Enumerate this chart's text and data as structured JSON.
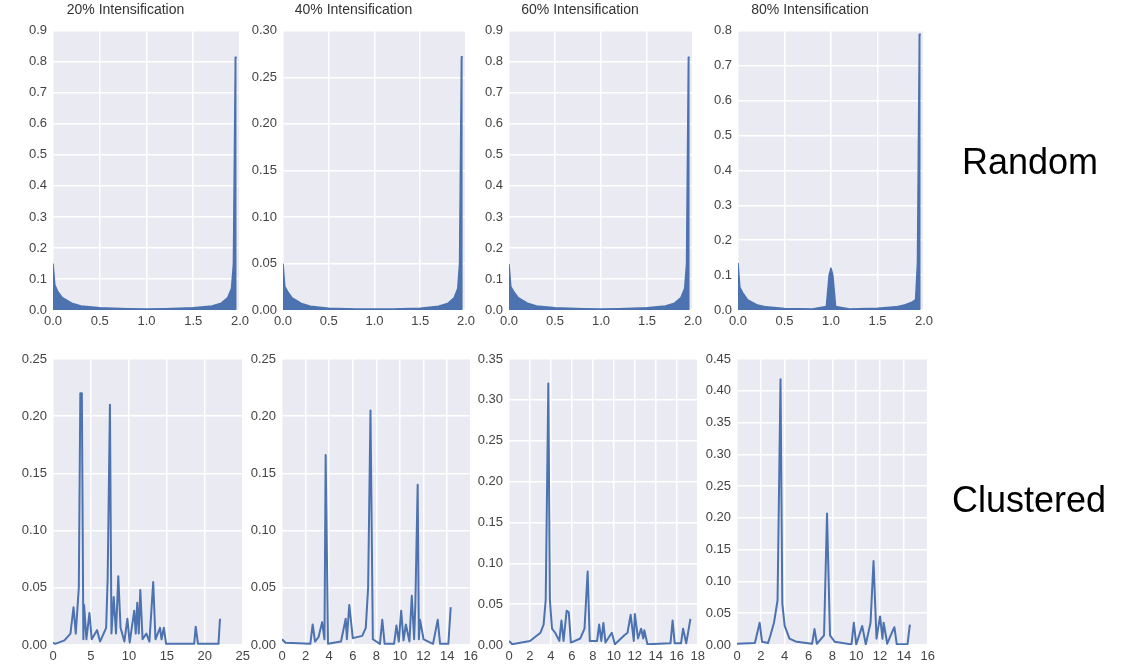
{
  "chart_data": [
    {
      "type": "area",
      "title": "20% Intensification",
      "color": "#4c72b0",
      "grid": true,
      "x": [
        0,
        0.02,
        0.05,
        0.1,
        0.2,
        0.3,
        0.5,
        0.8,
        1.0,
        1.2,
        1.5,
        1.7,
        1.8,
        1.87,
        1.91,
        1.93,
        1.95,
        1.965
      ],
      "values": [
        0.15,
        0.08,
        0.06,
        0.04,
        0.022,
        0.013,
        0.007,
        0.004,
        0.003,
        0.004,
        0.007,
        0.013,
        0.022,
        0.04,
        0.07,
        0.15,
        0.815,
        0.815
      ],
      "xlim": [
        0,
        2
      ],
      "ylim": [
        0,
        0.9
      ],
      "xticks": [
        {
          "value": 0,
          "label": "0.0"
        },
        0.5,
        {
          "value": 1,
          "label": "1.0"
        },
        1.5,
        {
          "value": 2,
          "label": "2.0"
        }
      ],
      "yticks": [
        {
          "value": 0,
          "label": "0.0"
        },
        0.1,
        0.2,
        0.3,
        0.4,
        0.5,
        0.6,
        0.7,
        0.8,
        0.9
      ]
    },
    {
      "type": "area",
      "title": "40% Intensification",
      "color": "#4c72b0",
      "grid": true,
      "x": [
        0,
        0.02,
        0.05,
        0.1,
        0.2,
        0.3,
        0.5,
        0.8,
        1.0,
        1.2,
        1.5,
        1.7,
        1.8,
        1.87,
        1.91,
        1.93,
        1.95,
        1.965
      ],
      "values": [
        0.05,
        0.025,
        0.02,
        0.013,
        0.007,
        0.004,
        0.002,
        0.001,
        0.001,
        0.001,
        0.002,
        0.004,
        0.007,
        0.013,
        0.023,
        0.05,
        0.272,
        0.272
      ],
      "xlim": [
        0,
        2
      ],
      "ylim": [
        0,
        0.3
      ],
      "xticks": [
        {
          "value": 0,
          "label": "0.0"
        },
        0.5,
        {
          "value": 1,
          "label": "1.0"
        },
        1.5,
        {
          "value": 2,
          "label": "2.0"
        }
      ],
      "yticks": [
        {
          "value": 0,
          "label": "0.00"
        },
        0.05,
        {
          "value": 0.1,
          "label": "0.10"
        },
        0.15,
        {
          "value": 0.2,
          "label": "0.20"
        },
        0.25,
        {
          "value": 0.3,
          "label": "0.30"
        }
      ]
    },
    {
      "type": "area",
      "title": "60% Intensification",
      "color": "#4c72b0",
      "grid": true,
      "x": [
        0,
        0.02,
        0.05,
        0.1,
        0.2,
        0.3,
        0.5,
        0.8,
        1.0,
        1.2,
        1.5,
        1.7,
        1.8,
        1.87,
        1.91,
        1.93,
        1.95,
        1.965
      ],
      "values": [
        0.148,
        0.075,
        0.06,
        0.04,
        0.022,
        0.013,
        0.007,
        0.004,
        0.003,
        0.004,
        0.007,
        0.013,
        0.022,
        0.04,
        0.07,
        0.148,
        0.815,
        0.815
      ],
      "xlim": [
        0,
        2
      ],
      "ylim": [
        0,
        0.9
      ],
      "xticks": [
        {
          "value": 0,
          "label": "0.0"
        },
        0.5,
        {
          "value": 1,
          "label": "1.0"
        },
        1.5,
        {
          "value": 2,
          "label": "2.0"
        }
      ],
      "yticks": [
        {
          "value": 0,
          "label": "0.0"
        },
        0.1,
        0.2,
        0.3,
        0.4,
        0.5,
        0.6,
        0.7,
        0.8,
        0.9
      ]
    },
    {
      "type": "area",
      "title": "80% Intensification",
      "color": "#4c72b0",
      "grid": true,
      "annotations": [
        "Random"
      ],
      "x": [
        0,
        0.02,
        0.05,
        0.1,
        0.2,
        0.3,
        0.5,
        0.8,
        0.95,
        0.98,
        1.0,
        1.02,
        1.05,
        1.2,
        1.5,
        1.7,
        1.8,
        1.87,
        1.91,
        1.93,
        1.95,
        1.965
      ],
      "values": [
        0.135,
        0.065,
        0.05,
        0.03,
        0.015,
        0.009,
        0.004,
        0.003,
        0.01,
        0.1,
        0.12,
        0.1,
        0.01,
        0.003,
        0.005,
        0.009,
        0.015,
        0.022,
        0.03,
        0.135,
        0.79,
        0.79
      ],
      "xlim": [
        0,
        2
      ],
      "ylim": [
        0,
        0.8
      ],
      "xticks": [
        {
          "value": 0,
          "label": "0.0"
        },
        0.5,
        {
          "value": 1,
          "label": "1.0"
        },
        1.5,
        {
          "value": 2,
          "label": "2.0"
        }
      ],
      "yticks": [
        {
          "value": 0,
          "label": "0.0"
        },
        0.1,
        0.2,
        0.3,
        0.4,
        0.5,
        0.6,
        0.7,
        0.8
      ]
    },
    {
      "type": "line",
      "color": "#4c72b0",
      "grid": true,
      "x": [
        0,
        0.3,
        1.5,
        2.3,
        2.7,
        3.0,
        3.4,
        3.6,
        3.8,
        4.0,
        4.1,
        4.4,
        4.8,
        5.1,
        5.8,
        6.2,
        7.0,
        7.2,
        7.5,
        7.7,
        8.0,
        8.3,
        8.6,
        8.9,
        9.4,
        9.8,
        10.1,
        10.7,
        10.9,
        11.1,
        11.3,
        11.5,
        11.8,
        12.3,
        12.7,
        13.2,
        13.5,
        14.1,
        14.3,
        14.6,
        14.9,
        18.6,
        18.8,
        19.1,
        21.8,
        22.0
      ],
      "values": [
        0.002,
        0.001,
        0.004,
        0.01,
        0.033,
        0.01,
        0.05,
        0.22,
        0.22,
        0.005,
        0.035,
        0.005,
        0.028,
        0.005,
        0.013,
        0.003,
        0.015,
        0.058,
        0.21,
        0.01,
        0.042,
        0.01,
        0.06,
        0.015,
        0.003,
        0.023,
        0.002,
        0.03,
        0.01,
        0.037,
        0.01,
        0.048,
        0.005,
        0.01,
        0.003,
        0.055,
        0.005,
        0.015,
        0.005,
        0.015,
        0.001,
        0.001,
        0.016,
        0.001,
        0.001,
        0.023
      ],
      "xlim": [
        0,
        25
      ],
      "ylim": [
        0,
        0.25
      ],
      "xticks": [
        0,
        5,
        10,
        15,
        20,
        25
      ],
      "yticks": [
        {
          "value": 0,
          "label": "0.00"
        },
        0.05,
        {
          "value": 0.1,
          "label": "0.10"
        },
        0.15,
        {
          "value": 0.2,
          "label": "0.20"
        },
        0.25
      ]
    },
    {
      "type": "line",
      "color": "#4c72b0",
      "grid": true,
      "x": [
        0,
        0.3,
        2.4,
        2.6,
        2.8,
        3.1,
        3.4,
        3.6,
        3.7,
        3.9,
        5.0,
        5.4,
        5.5,
        5.7,
        6.0,
        6.8,
        7.1,
        7.3,
        7.5,
        7.7,
        8.3,
        8.5,
        8.7,
        9.5,
        9.7,
        9.9,
        10.1,
        10.3,
        10.5,
        10.8,
        11.0,
        11.2,
        11.3,
        11.5,
        11.6,
        11.7,
        12.0,
        12.8,
        13.2,
        13.4,
        14.1,
        14.3
      ],
      "values": [
        0.005,
        0.002,
        0.001,
        0.018,
        0.003,
        0.007,
        0.02,
        0.005,
        0.166,
        0.001,
        0.003,
        0.023,
        0.005,
        0.035,
        0.006,
        0.008,
        0.015,
        0.05,
        0.205,
        0.005,
        0.001,
        0.022,
        0.001,
        0.001,
        0.017,
        0.003,
        0.03,
        0.004,
        0.018,
        0.003,
        0.043,
        0.005,
        0.035,
        0.14,
        0.005,
        0.022,
        0.005,
        0.001,
        0.022,
        0.001,
        0.001,
        0.033
      ],
      "xlim": [
        0,
        16
      ],
      "ylim": [
        0,
        0.25
      ],
      "xticks": [
        0,
        2,
        4,
        6,
        8,
        10,
        12,
        14,
        16
      ],
      "yticks": [
        {
          "value": 0,
          "label": "0.00"
        },
        0.05,
        {
          "value": 0.1,
          "label": "0.10"
        },
        0.15,
        {
          "value": 0.2,
          "label": "0.20"
        },
        0.25
      ]
    },
    {
      "type": "line",
      "color": "#4c72b0",
      "grid": true,
      "x": [
        0,
        0.3,
        2.0,
        3.0,
        3.3,
        3.5,
        3.75,
        3.9,
        4.1,
        4.4,
        4.8,
        5.0,
        5.2,
        5.5,
        5.7,
        5.9,
        6.8,
        7.2,
        7.5,
        7.7,
        8.4,
        8.6,
        8.8,
        9.0,
        9.2,
        9.8,
        10.1,
        11.0,
        11.3,
        11.6,
        11.9,
        12.0,
        12.3,
        12.6,
        12.8,
        12.9,
        13.2,
        15.4,
        15.6,
        15.8,
        16.4,
        16.6,
        16.9,
        17.3
      ],
      "values": [
        0.005,
        0.001,
        0.005,
        0.015,
        0.025,
        0.055,
        0.32,
        0.055,
        0.02,
        0.015,
        0.005,
        0.03,
        0.005,
        0.042,
        0.04,
        0.003,
        0.008,
        0.02,
        0.09,
        0.005,
        0.005,
        0.025,
        0.005,
        0.027,
        0.003,
        0.015,
        0.001,
        0.012,
        0.015,
        0.037,
        0.005,
        0.038,
        0.008,
        0.02,
        0.008,
        0.018,
        0.001,
        0.002,
        0.03,
        0.002,
        0.002,
        0.02,
        0.002,
        0.032
      ],
      "xlim": [
        0,
        18
      ],
      "ylim": [
        0,
        0.35
      ],
      "xticks": [
        0,
        2,
        4,
        6,
        8,
        10,
        12,
        14,
        16,
        18
      ],
      "yticks": [
        {
          "value": 0,
          "label": "0.00"
        },
        0.05,
        {
          "value": 0.1,
          "label": "0.10"
        },
        0.15,
        {
          "value": 0.2,
          "label": "0.20"
        },
        0.25,
        {
          "value": 0.3,
          "label": "0.30"
        },
        0.35
      ]
    },
    {
      "type": "line",
      "color": "#4c72b0",
      "grid": true,
      "annotations": [
        "Clustered"
      ],
      "x": [
        0,
        1.5,
        1.9,
        2.1,
        2.6,
        2.8,
        3.1,
        3.4,
        3.65,
        3.8,
        4.0,
        4.4,
        5.0,
        6.3,
        6.5,
        6.7,
        7.3,
        7.55,
        7.8,
        8.2,
        9.6,
        9.8,
        10.0,
        10.5,
        10.8,
        11.2,
        11.45,
        11.7,
        12.0,
        12.2,
        12.3,
        12.6,
        13.0,
        13.2,
        13.4,
        14.3,
        14.5
      ],
      "values": [
        0.002,
        0.003,
        0.035,
        0.005,
        0.003,
        0.015,
        0.035,
        0.07,
        0.418,
        0.065,
        0.03,
        0.01,
        0.005,
        0.002,
        0.025,
        0.002,
        0.015,
        0.207,
        0.015,
        0.005,
        0.001,
        0.035,
        0.001,
        0.03,
        0.001,
        0.035,
        0.132,
        0.01,
        0.045,
        0.01,
        0.035,
        0.002,
        0.02,
        0.028,
        0.001,
        0.001,
        0.032
      ],
      "xlim": [
        0,
        16
      ],
      "ylim": [
        0,
        0.45
      ],
      "xticks": [
        0,
        2,
        4,
        6,
        8,
        10,
        12,
        14,
        16
      ],
      "yticks": [
        {
          "value": 0,
          "label": "0.00"
        },
        0.05,
        {
          "value": 0.1,
          "label": "0.10"
        },
        0.15,
        {
          "value": 0.2,
          "label": "0.20"
        },
        0.25,
        {
          "value": 0.3,
          "label": "0.30"
        },
        0.35,
        {
          "value": 0.4,
          "label": "0.40"
        },
        0.45
      ]
    }
  ]
}
